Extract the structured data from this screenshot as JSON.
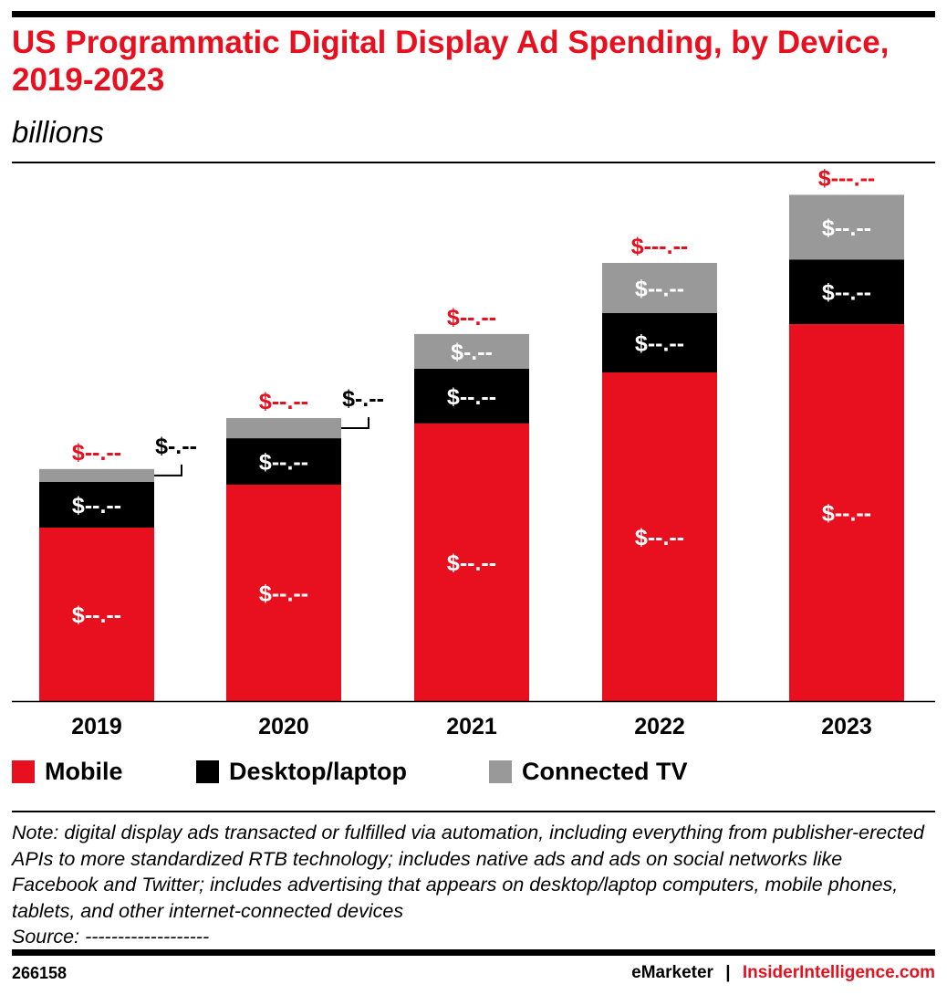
{
  "title": "US Programmatic Digital Display Ad Spending, by Device, 2019-2023",
  "subtitle": "billions",
  "chart_data": {
    "type": "bar",
    "stacked": true,
    "title": "US Programmatic Digital Display Ad Spending, by Device, 2019-2023",
    "ylabel": "billions",
    "categories": [
      "2019",
      "2020",
      "2021",
      "2022",
      "2023"
    ],
    "series": [
      {
        "name": "Mobile",
        "color": "#e8101e",
        "values": [
          45.6,
          56.9,
          73.0,
          86.4,
          99.1
        ],
        "labels": [
          "$--.--",
          "$--.--",
          "$--.--",
          "$--.--",
          "$--.--"
        ]
      },
      {
        "name": "Desktop/laptop",
        "color": "#000000",
        "values": [
          12.0,
          12.2,
          14.4,
          15.6,
          17.0
        ],
        "labels": [
          "$--.--",
          "$--.--",
          "$--.--",
          "$--.--",
          "$--.--"
        ]
      },
      {
        "name": "Connected TV",
        "color": "#999999",
        "values": [
          3.4,
          5.3,
          9.1,
          13.2,
          17.0
        ],
        "labels": [
          "$-.--",
          "$-.--",
          "$-.--",
          "$--.--",
          "$--.--"
        ]
      }
    ],
    "totals": {
      "values": [
        61.0,
        74.4,
        96.5,
        115.2,
        133.1
      ],
      "labels": [
        "$--.--",
        "$--.--",
        "$--.--",
        "$---.--",
        "$---.--"
      ]
    },
    "grid": false,
    "legend": "bottom-left"
  },
  "legend": [
    "Mobile",
    "Desktop/laptop",
    "Connected TV"
  ],
  "note": "Note: digital display ads transacted or fulfilled via automation, including everything from publisher-erected APIs to more standardized RTB technology; includes native ads and ads on social networks like Facebook and Twitter; includes advertising that appears on desktop/laptop computers, mobile phones, tablets, and other internet-connected devices",
  "source": "Source: -------------------",
  "footer": {
    "id": "266158",
    "brand1": "eMarketer",
    "sep": "|",
    "brand2": "InsiderIntelligence.com"
  }
}
